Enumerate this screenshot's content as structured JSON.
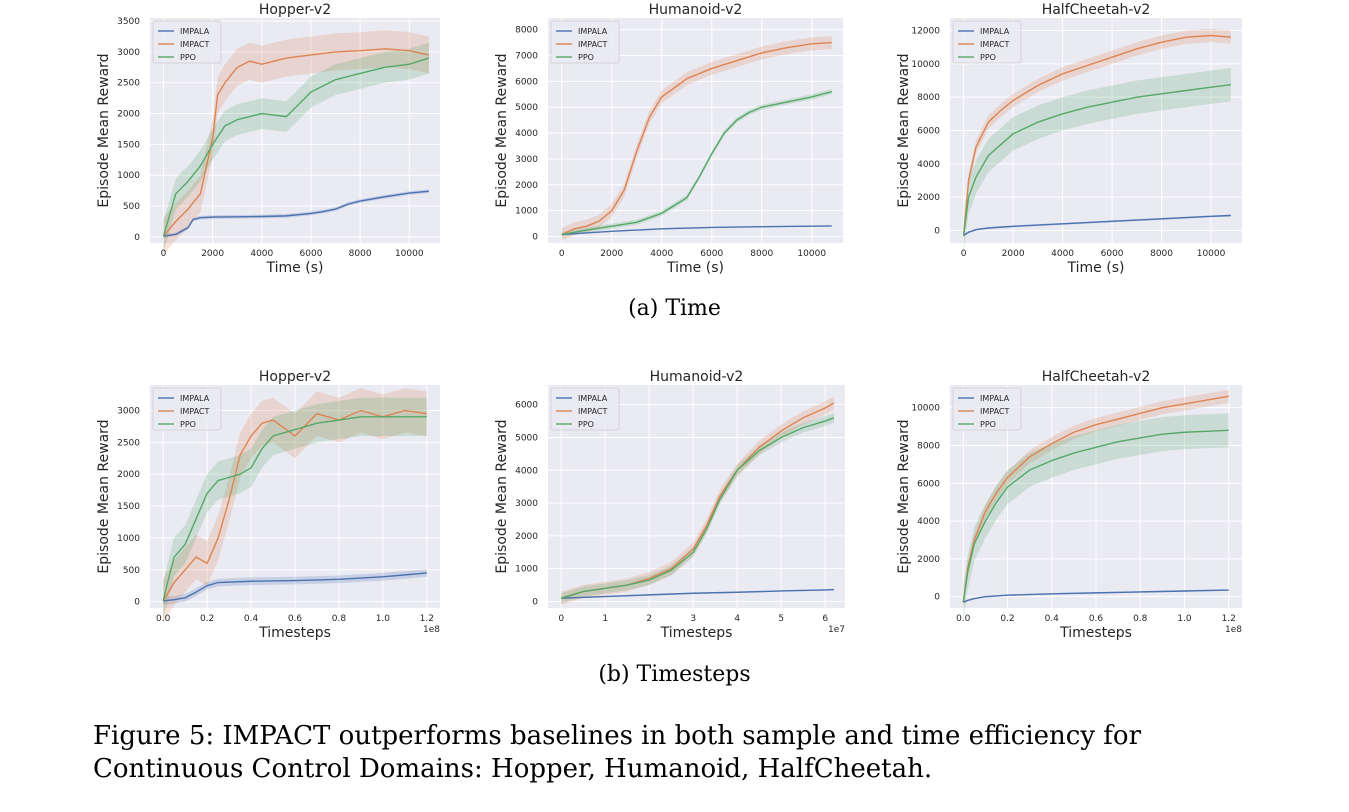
{
  "chart_data": [
    {
      "type": "line",
      "title": "Hopper-v2",
      "xlabel": "Time (s)",
      "ylabel": "Episode Mean Reward",
      "xlim": [
        -550,
        11250
      ],
      "ylim": [
        -100,
        3550
      ],
      "xticks": [
        0,
        2000,
        4000,
        6000,
        8000,
        10000
      ],
      "xtick_labels": [
        "0",
        "2000",
        "4000",
        "6000",
        "8000",
        "10000"
      ],
      "yticks": [
        0,
        500,
        1000,
        1500,
        2000,
        2500,
        3000,
        3500
      ],
      "ytick_labels": [
        "0",
        "500",
        "1000",
        "1500",
        "2000",
        "2500",
        "3000",
        "3500"
      ],
      "x_multiplier": "",
      "legend": "top-left",
      "grid": true,
      "series": [
        {
          "name": "IMPALA",
          "x": [
            0,
            500,
            1000,
            1200,
            1500,
            2000,
            3000,
            4000,
            5000,
            6000,
            6500,
            7000,
            7500,
            8000,
            9000,
            10000,
            10800
          ],
          "y": [
            10,
            40,
            150,
            280,
            310,
            320,
            325,
            330,
            340,
            380,
            410,
            450,
            530,
            580,
            650,
            710,
            740
          ],
          "band": 30
        },
        {
          "name": "IMPACT",
          "x": [
            0,
            500,
            1000,
            1500,
            2000,
            2200,
            2500,
            3000,
            3500,
            4000,
            5000,
            6000,
            7000,
            8000,
            9000,
            10000,
            10800
          ],
          "y": [
            10,
            250,
            450,
            700,
            1600,
            2300,
            2500,
            2750,
            2850,
            2800,
            2900,
            2950,
            3000,
            3020,
            3050,
            3020,
            2950
          ],
          "band": 300
        },
        {
          "name": "PPO",
          "x": [
            0,
            500,
            1000,
            1500,
            2000,
            2500,
            3000,
            4000,
            5000,
            6000,
            7000,
            8000,
            9000,
            10000,
            10800
          ],
          "y": [
            10,
            700,
            900,
            1150,
            1500,
            1800,
            1900,
            2000,
            1950,
            2350,
            2550,
            2650,
            2750,
            2800,
            2900
          ],
          "band": 250
        }
      ]
    },
    {
      "type": "line",
      "title": "Humanoid-v2",
      "xlabel": "Time (s)",
      "ylabel": "Episode Mean Reward",
      "xlim": [
        -550,
        11250
      ],
      "ylim": [
        -250,
        8450
      ],
      "xticks": [
        0,
        2000,
        4000,
        6000,
        8000,
        10000
      ],
      "xtick_labels": [
        "0",
        "2000",
        "4000",
        "6000",
        "8000",
        "10000"
      ],
      "yticks": [
        0,
        1000,
        2000,
        3000,
        4000,
        5000,
        6000,
        7000,
        8000
      ],
      "ytick_labels": [
        "0",
        "1000",
        "2000",
        "3000",
        "4000",
        "5000",
        "6000",
        "7000",
        "8000"
      ],
      "x_multiplier": "",
      "legend": "top-left",
      "grid": true,
      "series": [
        {
          "name": "IMPALA",
          "x": [
            0,
            2000,
            4000,
            6000,
            8000,
            10000,
            10800
          ],
          "y": [
            80,
            200,
            300,
            350,
            380,
            400,
            410
          ],
          "band": 20
        },
        {
          "name": "IMPACT",
          "x": [
            0,
            500,
            1000,
            1500,
            2000,
            2500,
            3000,
            3500,
            4000,
            5000,
            6000,
            7000,
            8000,
            9000,
            10000,
            10800
          ],
          "y": [
            80,
            300,
            400,
            600,
            1000,
            1800,
            3300,
            4600,
            5400,
            6100,
            6500,
            6800,
            7100,
            7300,
            7450,
            7500
          ],
          "band": 250
        },
        {
          "name": "PPO",
          "x": [
            0,
            1000,
            2000,
            3000,
            4000,
            5000,
            5500,
            6000,
            6500,
            7000,
            7500,
            8000,
            9000,
            10000,
            10800
          ],
          "y": [
            80,
            250,
            400,
            550,
            900,
            1500,
            2300,
            3200,
            4000,
            4500,
            4800,
            5000,
            5200,
            5400,
            5600
          ],
          "band": 100
        }
      ]
    },
    {
      "type": "line",
      "title": "HalfCheetah-v2",
      "xlabel": "Time (s)",
      "ylabel": "Episode Mean Reward",
      "xlim": [
        -550,
        11250
      ],
      "ylim": [
        -750,
        12750
      ],
      "xticks": [
        0,
        2000,
        4000,
        6000,
        8000,
        10000
      ],
      "xtick_labels": [
        "0",
        "2000",
        "4000",
        "6000",
        "8000",
        "10000"
      ],
      "yticks": [
        0,
        2000,
        4000,
        6000,
        8000,
        10000,
        12000
      ],
      "ytick_labels": [
        "0",
        "2000",
        "4000",
        "6000",
        "8000",
        "10000",
        "12000"
      ],
      "x_multiplier": "",
      "legend": "top-left",
      "grid": true,
      "series": [
        {
          "name": "IMPALA",
          "x": [
            0,
            200,
            500,
            1000,
            2000,
            4000,
            6000,
            8000,
            10000,
            10800
          ],
          "y": [
            -300,
            -100,
            50,
            150,
            250,
            400,
            550,
            700,
            850,
            900
          ],
          "band": 60
        },
        {
          "name": "IMPACT",
          "x": [
            0,
            200,
            500,
            1000,
            1500,
            2000,
            3000,
            4000,
            5000,
            6000,
            7000,
            8000,
            9000,
            10000,
            10800
          ],
          "y": [
            -300,
            3000,
            5000,
            6500,
            7200,
            7800,
            8700,
            9400,
            9900,
            10400,
            10900,
            11300,
            11600,
            11700,
            11600
          ],
          "band": 400
        },
        {
          "name": "PPO",
          "x": [
            0,
            200,
            500,
            1000,
            2000,
            3000,
            4000,
            5000,
            6000,
            7000,
            8000,
            9000,
            10000,
            10800
          ],
          "y": [
            -300,
            2000,
            3200,
            4500,
            5800,
            6500,
            7000,
            7400,
            7700,
            8000,
            8200,
            8400,
            8600,
            8750
          ],
          "band": 1000
        }
      ]
    },
    {
      "type": "line",
      "title": "Hopper-v2",
      "xlabel": "Timesteps",
      "ylabel": "Episode Mean Reward",
      "xlim": [
        -0.06,
        1.26
      ],
      "ylim": [
        -100,
        3400
      ],
      "xticks": [
        0,
        0.2,
        0.4,
        0.6,
        0.8,
        1.0,
        1.2
      ],
      "xtick_labels": [
        "0.0",
        "0.2",
        "0.4",
        "0.6",
        "0.8",
        "1.0",
        "1.2"
      ],
      "yticks": [
        0,
        500,
        1000,
        1500,
        2000,
        2500,
        3000
      ],
      "ytick_labels": [
        "0",
        "500",
        "1000",
        "1500",
        "2000",
        "2500",
        "3000"
      ],
      "x_multiplier": "1e8",
      "legend": "top-left",
      "grid": true,
      "series": [
        {
          "name": "IMPALA",
          "x": [
            0,
            0.05,
            0.1,
            0.15,
            0.2,
            0.25,
            0.4,
            0.6,
            0.8,
            0.9,
            1.0,
            1.1,
            1.2
          ],
          "y": [
            10,
            30,
            60,
            150,
            250,
            300,
            320,
            330,
            350,
            370,
            390,
            420,
            450
          ],
          "band": 60
        },
        {
          "name": "IMPACT",
          "x": [
            0,
            0.05,
            0.1,
            0.15,
            0.2,
            0.25,
            0.3,
            0.35,
            0.4,
            0.45,
            0.5,
            0.6,
            0.7,
            0.8,
            0.9,
            1.0,
            1.1,
            1.2
          ],
          "y": [
            10,
            300,
            500,
            700,
            600,
            1000,
            1600,
            2300,
            2600,
            2800,
            2850,
            2600,
            2950,
            2850,
            3000,
            2900,
            3000,
            2950
          ],
          "band": 350
        },
        {
          "name": "PPO",
          "x": [
            0,
            0.02,
            0.05,
            0.1,
            0.15,
            0.2,
            0.25,
            0.3,
            0.35,
            0.4,
            0.45,
            0.5,
            0.6,
            0.7,
            0.8,
            0.9,
            1.0,
            1.1,
            1.2
          ],
          "y": [
            10,
            300,
            700,
            900,
            1300,
            1700,
            1900,
            1950,
            2000,
            2100,
            2400,
            2600,
            2700,
            2800,
            2850,
            2900,
            2900,
            2900,
            2900
          ],
          "band": 300
        }
      ]
    },
    {
      "type": "line",
      "title": "Humanoid-v2",
      "xlabel": "Timesteps",
      "ylabel": "Episode Mean Reward",
      "xlim": [
        -0.3,
        6.45
      ],
      "ylim": [
        -200,
        6600
      ],
      "xticks": [
        0,
        1,
        2,
        3,
        4,
        5,
        6
      ],
      "xtick_labels": [
        "0",
        "1",
        "2",
        "3",
        "4",
        "5",
        "6"
      ],
      "yticks": [
        0,
        1000,
        2000,
        3000,
        4000,
        5000,
        6000
      ],
      "ytick_labels": [
        "0",
        "1000",
        "2000",
        "3000",
        "4000",
        "5000",
        "6000"
      ],
      "x_multiplier": "1e7",
      "legend": "top-left",
      "grid": true,
      "series": [
        {
          "name": "IMPALA",
          "x": [
            0,
            1,
            2,
            3,
            4,
            5,
            6,
            6.2
          ],
          "y": [
            100,
            150,
            200,
            250,
            280,
            320,
            350,
            360
          ],
          "band": 20
        },
        {
          "name": "IMPACT",
          "x": [
            0,
            0.5,
            1,
            1.5,
            2,
            2.5,
            3,
            3.3,
            3.6,
            4,
            4.5,
            5,
            5.5,
            6,
            6.2
          ],
          "y": [
            100,
            300,
            400,
            500,
            700,
            1000,
            1600,
            2300,
            3200,
            4000,
            4700,
            5200,
            5600,
            5900,
            6050
          ],
          "band": 200
        },
        {
          "name": "PPO",
          "x": [
            0,
            0.5,
            1,
            1.5,
            2,
            2.5,
            3,
            3.3,
            3.6,
            4,
            4.5,
            5,
            5.5,
            6,
            6.2
          ],
          "y": [
            100,
            300,
            400,
            500,
            650,
            950,
            1500,
            2200,
            3100,
            4000,
            4600,
            5000,
            5300,
            5500,
            5600
          ],
          "band": 150
        }
      ]
    },
    {
      "type": "line",
      "title": "HalfCheetah-v2",
      "xlabel": "Timesteps",
      "ylabel": "Episode Mean Reward",
      "xlim": [
        -0.06,
        1.26
      ],
      "ylim": [
        -600,
        11200
      ],
      "xticks": [
        0,
        0.2,
        0.4,
        0.6,
        0.8,
        1.0,
        1.2
      ],
      "xtick_labels": [
        "0.0",
        "0.2",
        "0.4",
        "0.6",
        "0.8",
        "1.0",
        "1.2"
      ],
      "yticks": [
        0,
        2000,
        4000,
        6000,
        8000,
        10000
      ],
      "ytick_labels": [
        "0",
        "2000",
        "4000",
        "6000",
        "8000",
        "10000"
      ],
      "x_multiplier": "1e8",
      "legend": "top-left",
      "grid": true,
      "series": [
        {
          "name": "IMPALA",
          "x": [
            0,
            0.02,
            0.05,
            0.1,
            0.2,
            0.4,
            0.6,
            0.8,
            1.0,
            1.2
          ],
          "y": [
            -300,
            -200,
            -100,
            0,
            80,
            150,
            200,
            250,
            300,
            350
          ],
          "band": 40
        },
        {
          "name": "IMPACT",
          "x": [
            0,
            0.02,
            0.05,
            0.1,
            0.15,
            0.2,
            0.3,
            0.4,
            0.5,
            0.6,
            0.7,
            0.8,
            0.9,
            1.0,
            1.1,
            1.2
          ],
          "y": [
            -300,
            1500,
            3000,
            4500,
            5500,
            6300,
            7400,
            8100,
            8700,
            9100,
            9400,
            9700,
            10000,
            10200,
            10400,
            10600
          ],
          "band": 350
        },
        {
          "name": "PPO",
          "x": [
            0,
            0.02,
            0.05,
            0.1,
            0.15,
            0.2,
            0.3,
            0.4,
            0.5,
            0.6,
            0.7,
            0.8,
            0.9,
            1.0,
            1.1,
            1.2
          ],
          "y": [
            -300,
            1300,
            2800,
            4000,
            5000,
            5800,
            6700,
            7200,
            7600,
            7900,
            8200,
            8400,
            8600,
            8700,
            8750,
            8800
          ],
          "band": 900
        }
      ]
    }
  ],
  "colors": {
    "IMPALA": "#4c72b0",
    "IMPACT": "#dd8452",
    "PPO": "#55a868",
    "plot_bg": "#eaeaf2",
    "grid": "#ffffff"
  },
  "captions": {
    "sub_a": "(a) Time",
    "sub_b": "(b) Timesteps",
    "figure": "Figure 5: IMPACT outperforms baselines in both sample and time efficiency for Continuous Control Domains: Hopper, Humanoid, HalfCheetah."
  }
}
